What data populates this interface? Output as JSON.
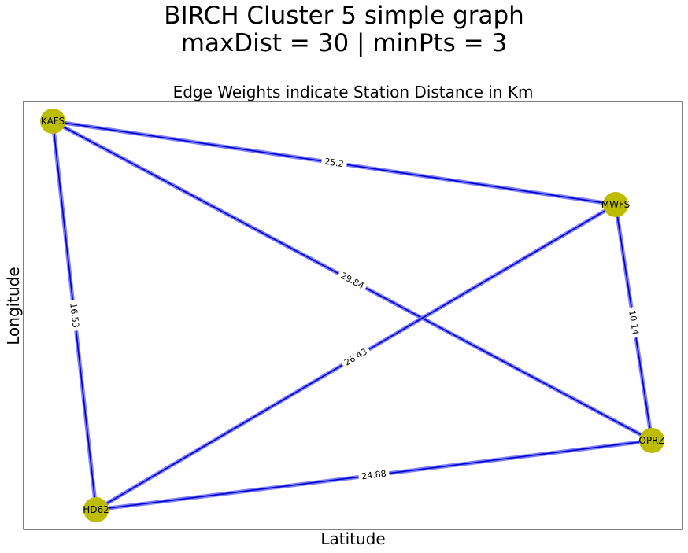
{
  "figure": {
    "suptitle_line1": "BIRCH Cluster 5 simple graph",
    "suptitle_line2": "maxDist = 30 | minPts = 3",
    "title": "Edge Weights indicate Station Distance in Km",
    "xlabel": "Latitude",
    "ylabel": "Longitude"
  },
  "colors": {
    "node": "#bdbd00",
    "edge_dark": "#0000cc",
    "edge_glow": "#7070ff",
    "frame": "#000000"
  },
  "graph": {
    "nodes": [
      {
        "id": "KAFS",
        "label": "KAFS"
      },
      {
        "id": "MWFS",
        "label": "MWFS"
      },
      {
        "id": "OPRZ",
        "label": "OPRZ"
      },
      {
        "id": "HD62",
        "label": "HD62"
      }
    ],
    "edges": [
      {
        "source": "KAFS",
        "target": "MWFS",
        "weight": "25.2"
      },
      {
        "source": "KAFS",
        "target": "OPRZ",
        "weight": "29.84"
      },
      {
        "source": "KAFS",
        "target": "HD62",
        "weight": "16.53"
      },
      {
        "source": "MWFS",
        "target": "OPRZ",
        "weight": "10.14"
      },
      {
        "source": "MWFS",
        "target": "HD62",
        "weight": "26.43"
      },
      {
        "source": "OPRZ",
        "target": "HD62",
        "weight": "24.88"
      }
    ]
  }
}
